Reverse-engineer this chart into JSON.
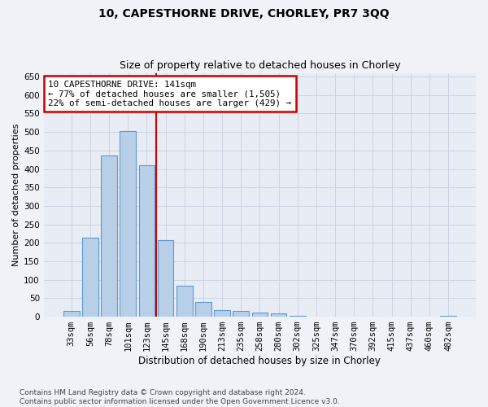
{
  "title": "10, CAPESTHORNE DRIVE, CHORLEY, PR7 3QQ",
  "subtitle": "Size of property relative to detached houses in Chorley",
  "xlabel": "Distribution of detached houses by size in Chorley",
  "ylabel": "Number of detached properties",
  "categories": [
    "33sqm",
    "56sqm",
    "78sqm",
    "101sqm",
    "123sqm",
    "145sqm",
    "168sqm",
    "190sqm",
    "213sqm",
    "235sqm",
    "258sqm",
    "280sqm",
    "302sqm",
    "325sqm",
    "347sqm",
    "370sqm",
    "392sqm",
    "415sqm",
    "437sqm",
    "460sqm",
    "482sqm"
  ],
  "values": [
    15,
    213,
    437,
    502,
    411,
    207,
    83,
    40,
    18,
    15,
    12,
    8,
    3,
    1,
    1,
    1,
    0,
    0,
    0,
    0,
    2
  ],
  "bar_color": "#b8cfe8",
  "bar_edge_color": "#5b9bd5",
  "vline_color": "#cc0000",
  "annotation_text": "10 CAPESTHORNE DRIVE: 141sqm\n← 77% of detached houses are smaller (1,505)\n22% of semi-detached houses are larger (429) →",
  "annotation_box_color": "#ffffff",
  "annotation_box_edge_color": "#cc0000",
  "ylim": [
    0,
    660
  ],
  "yticks": [
    0,
    50,
    100,
    150,
    200,
    250,
    300,
    350,
    400,
    450,
    500,
    550,
    600,
    650
  ],
  "grid_color": "#c8d0df",
  "background_color": "#e8ecf5",
  "fig_background_color": "#f0f2f8",
  "footer": "Contains HM Land Registry data © Crown copyright and database right 2024.\nContains public sector information licensed under the Open Government Licence v3.0.",
  "title_fontsize": 10,
  "subtitle_fontsize": 9,
  "xlabel_fontsize": 8.5,
  "ylabel_fontsize": 8,
  "tick_fontsize": 7.5,
  "annotation_fontsize": 7.8,
  "footer_fontsize": 6.5
}
